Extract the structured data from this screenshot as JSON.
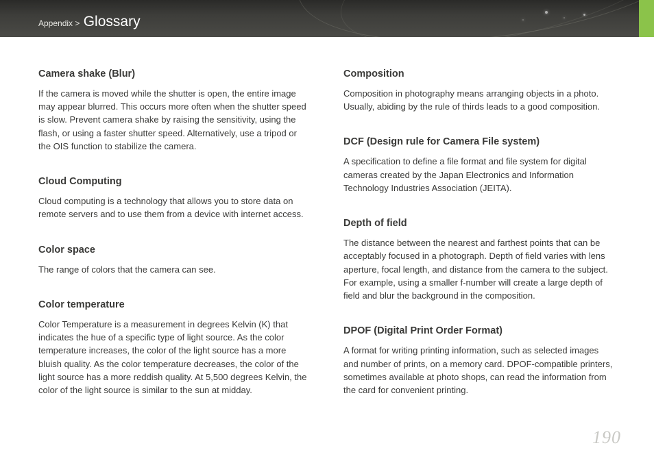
{
  "header": {
    "breadcrumb_prefix": "Appendix > ",
    "breadcrumb_title": "Glossary",
    "accent_color": "#8bc34a"
  },
  "page_number": "190",
  "left_column": [
    {
      "term": "Camera shake (Blur)",
      "def": "If the camera is moved while the shutter is open, the entire image may appear blurred. This occurs more often when the shutter speed is slow. Prevent camera shake by raising the sensitivity, using the flash, or using a faster shutter speed. Alternatively, use a tripod or the OIS function to stabilize the camera."
    },
    {
      "term": "Cloud Computing",
      "def": "Cloud computing is a technology that allows you to store data on remote servers and to use them from a device with internet access."
    },
    {
      "term": "Color space",
      "def": "The range of colors that the camera can see."
    },
    {
      "term": "Color temperature",
      "def": "Color Temperature is a measurement in degrees Kelvin (K) that indicates the hue of a specific type of light source. As the color temperature increases, the color of the light source has a more bluish quality. As the color temperature decreases, the color of the light source has a more reddish quality. At 5,500 degrees Kelvin, the color of the light source is similar to the sun at midday."
    }
  ],
  "right_column": [
    {
      "term": "Composition",
      "def": "Composition in photography means arranging objects in a photo. Usually, abiding by the rule of thirds leads to a good composition."
    },
    {
      "term": "DCF (Design rule for Camera File system)",
      "def": "A specification to define a file format and file system for digital cameras created by the Japan Electronics and Information Technology Industries Association (JEITA)."
    },
    {
      "term": "Depth of field",
      "def": "The distance between the nearest and farthest points that can be acceptably focused in a photograph. Depth of field varies with lens aperture, focal length, and distance from the camera to the subject. For example, using a smaller f-number will create a large depth of field and blur the background in the composition."
    },
    {
      "term": "DPOF (Digital Print Order Format)",
      "def": "A format for writing printing information, such as selected images and number of prints, on a memory card. DPOF-compatible printers, sometimes available at photo shops, can read the information from the card for convenient printing."
    }
  ]
}
